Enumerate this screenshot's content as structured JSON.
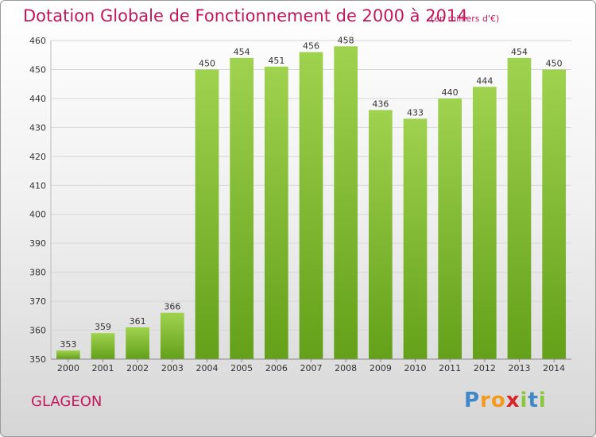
{
  "chart_data": {
    "type": "bar",
    "title": "Dotation Globale de Fonctionnement de 2000 à 2014",
    "subtitle": "(en milliers d'€)",
    "categories": [
      "2000",
      "2001",
      "2002",
      "2003",
      "2004",
      "2005",
      "2006",
      "2007",
      "2008",
      "2009",
      "2010",
      "2011",
      "2012",
      "2013",
      "2014"
    ],
    "values": [
      353,
      359,
      361,
      366,
      450,
      454,
      451,
      456,
      458,
      436,
      433,
      440,
      444,
      454,
      450
    ],
    "ylim": [
      350,
      460
    ],
    "yticks": [
      350,
      360,
      370,
      380,
      390,
      400,
      410,
      420,
      430,
      440,
      450,
      460
    ],
    "grid": true,
    "bar_color": "#8cc63f"
  },
  "commune": "GLAGEON",
  "logo": {
    "letters": [
      "P",
      "r",
      "o",
      "x",
      "i",
      "t",
      "i"
    ],
    "colors": [
      "#3f87c6",
      "#f39a1e",
      "#f39a1e",
      "#d6252a",
      "#8cc63f",
      "#3f87c6",
      "#8cc63f"
    ]
  }
}
